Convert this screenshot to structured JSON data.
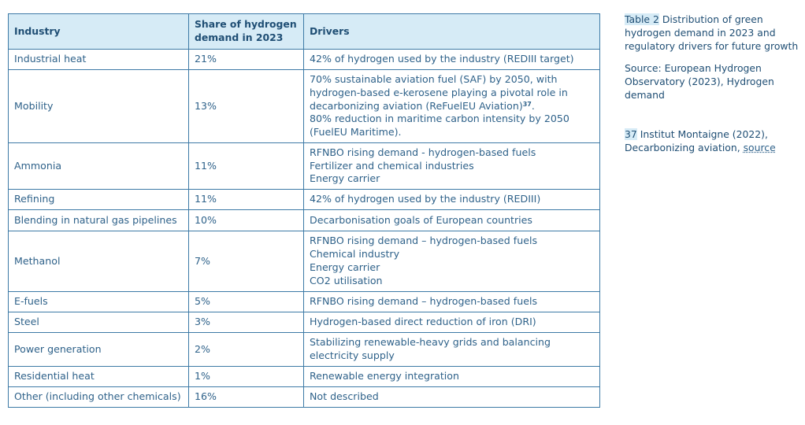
{
  "table": {
    "headers": [
      "Industry",
      "Share of hydrogen demand in 2023",
      "Drivers"
    ],
    "rows": [
      {
        "industry": "Industrial heat",
        "share": "21%",
        "drivers": [
          "42% of hydrogen used by the industry (REDIII target)"
        ]
      },
      {
        "industry": "Mobility",
        "share": "13%",
        "drivers": [
          "70% sustainable aviation fuel (SAF) by 2050, with hydrogen-based e-kerosene playing a pivotal role in decarbonizing aviation (ReFuelEU Aviation)",
          "80% reduction in maritime carbon intensity by 2050 (FuelEU Maritime)."
        ],
        "footnote_ref": "37"
      },
      {
        "industry": "Ammonia",
        "share": "11%",
        "drivers": [
          "RFNBO rising demand - hydrogen-based fuels",
          "Fertilizer and chemical industries",
          "Energy carrier"
        ]
      },
      {
        "industry": "Refining",
        "share": "11%",
        "drivers": [
          "42% of hydrogen used by the industry (REDIII)"
        ]
      },
      {
        "industry": "Blending in natural gas pipelines",
        "share": "10%",
        "drivers": [
          "Decarbonisation goals of European countries"
        ]
      },
      {
        "industry": "Methanol",
        "share": "7%",
        "drivers": [
          "RFNBO rising demand – hydrogen-based fuels",
          "Chemical industry",
          "Energy carrier",
          "CO2 utilisation"
        ]
      },
      {
        "industry": "E-fuels",
        "share": "5%",
        "drivers": [
          "RFNBO rising demand – hydrogen-based fuels"
        ]
      },
      {
        "industry": "Steel",
        "share": "3%",
        "drivers": [
          "Hydrogen-based direct reduction of iron (DRI)"
        ]
      },
      {
        "industry": "Power generation",
        "share": "2%",
        "drivers": [
          "Stabilizing renewable-heavy grids and balancing electricity supply"
        ]
      },
      {
        "industry": "Residential heat",
        "share": "1%",
        "drivers": [
          "Renewable energy integration"
        ]
      },
      {
        "industry": "Other (including other chemicals)",
        "share": "16%",
        "drivers": [
          "Not described"
        ]
      }
    ]
  },
  "caption": {
    "label": "Table 2",
    "text": "Distribution of green hydrogen demand in 2023 and regulatory drivers for future growth",
    "source": "Source: European Hydrogen Observatory (2023), Hydrogen demand"
  },
  "footnote": {
    "number": "37",
    "text": "Institut Montaigne (2022), Decarbonizing aviation, ",
    "link": "source"
  }
}
